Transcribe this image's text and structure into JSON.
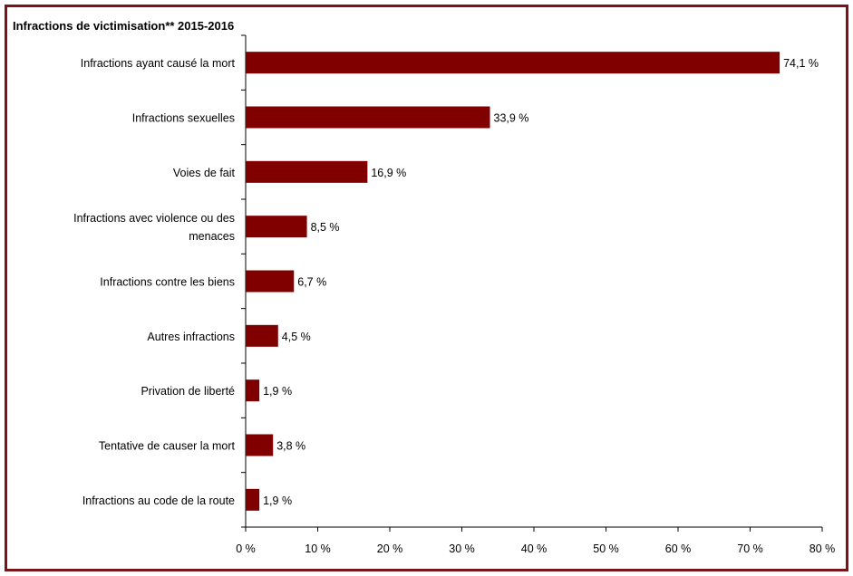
{
  "chart_data": {
    "type": "bar",
    "orientation": "horizontal",
    "title": "Infractions de victimisation**  2015-2016",
    "categories": [
      "Infractions ayant causé la mort",
      "Infractions sexuelles",
      "Voies de fait",
      "Infractions avec violence ou des menaces",
      "Infractions contre les biens",
      "Autres infractions",
      "Privation de liberté",
      "Tentative de causer la mort",
      "Infractions au code de la route"
    ],
    "category_lines": [
      [
        "Infractions ayant causé la mort"
      ],
      [
        "Infractions sexuelles"
      ],
      [
        "Voies de fait"
      ],
      [
        "Infractions avec violence ou des",
        "menaces"
      ],
      [
        "Infractions contre les biens"
      ],
      [
        "Autres infractions"
      ],
      [
        "Privation de liberté"
      ],
      [
        "Tentative de causer la mort"
      ],
      [
        "Infractions au code de la route"
      ]
    ],
    "values": [
      74.1,
      33.9,
      16.9,
      8.5,
      6.7,
      4.5,
      1.9,
      3.8,
      1.9
    ],
    "value_labels": [
      "74,1 %",
      "33,9 %",
      "16,9 %",
      "8,5 %",
      "6,7 %",
      "4,5 %",
      "1,9 %",
      "3,8 %",
      "1,9 %"
    ],
    "xlim": [
      0,
      80
    ],
    "x_ticks": [
      0,
      10,
      20,
      30,
      40,
      50,
      60,
      70,
      80
    ],
    "x_tick_labels": [
      "0 %",
      "10 %",
      "20 %",
      "30 %",
      "40 %",
      "50 %",
      "60 %",
      "70 %",
      "80 %"
    ],
    "xlabel": "",
    "ylabel": "",
    "grid": false,
    "legend": "none",
    "bar_color": "#800000",
    "frame_color": "#7a1418"
  }
}
